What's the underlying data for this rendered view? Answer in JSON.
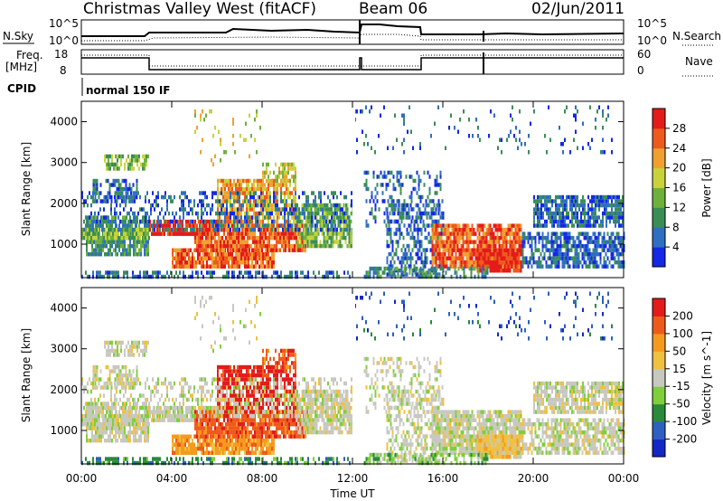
{
  "header": {
    "station": "Christmas Valley West (fitACF)",
    "beam": "Beam 06",
    "date": "02/Jun/2011"
  },
  "top_panels": {
    "nsky_label": "N.Sky",
    "nsearch_label": "N.Search",
    "freq_label_1": "Freq.",
    "freq_label_2": "[MHz]",
    "nave_label": "Nave",
    "cpid_label": "CPID",
    "cpid_value": "normal 150 IF",
    "noise_ticks": {
      "left_top": "10^5",
      "left_bottom": "10^0",
      "right_top": "10^5",
      "right_bottom": "10^0"
    },
    "freq_ticks": {
      "left_top": "18",
      "left_bottom": "8",
      "right_top": "60",
      "right_bottom": "0"
    }
  },
  "colors": {
    "power": [
      "#1428e6",
      "#2f6fc1",
      "#3a8e55",
      "#6fb03c",
      "#c9d23a",
      "#f0a030",
      "#ee5a1c",
      "#e31b1b"
    ],
    "velocity": [
      "#e31b1b",
      "#ee5a1c",
      "#f59a1e",
      "#f0c040",
      "#c8c8c0",
      "#7fcf3a",
      "#2a8a3a",
      "#2f5fc1",
      "#1428c8"
    ]
  },
  "chart_data": [
    {
      "type": "heatmap",
      "name": "power",
      "ylabel": "Slant Range [km]",
      "colorbar_label": "Power [dB]",
      "colorbar_ticks": [
        "4",
        "8",
        "12",
        "16",
        "20",
        "24",
        "28"
      ],
      "y_ticks": [
        "1000",
        "2000",
        "3000",
        "4000"
      ],
      "ylim": [
        180,
        4500
      ],
      "x_ticks": [
        "00:00",
        "04:00",
        "08:00",
        "12:00",
        "16:00",
        "20:00",
        "00:00"
      ],
      "xlim_hours": [
        0,
        24
      ]
    },
    {
      "type": "heatmap",
      "name": "velocity",
      "ylabel": "Slant Range [km]",
      "xlabel": "Time UT",
      "colorbar_label": "Velocity [m s^-1]",
      "colorbar_ticks": [
        "200",
        "100",
        "50",
        "15",
        "-15",
        "-50",
        "-100",
        "-200"
      ],
      "y_ticks": [
        "1000",
        "2000",
        "3000",
        "4000"
      ],
      "ylim": [
        180,
        4500
      ],
      "x_ticks": [
        "00:00",
        "04:00",
        "08:00",
        "12:00",
        "16:00",
        "20:00",
        "00:00"
      ],
      "xlim_hours": [
        0,
        24
      ]
    }
  ]
}
